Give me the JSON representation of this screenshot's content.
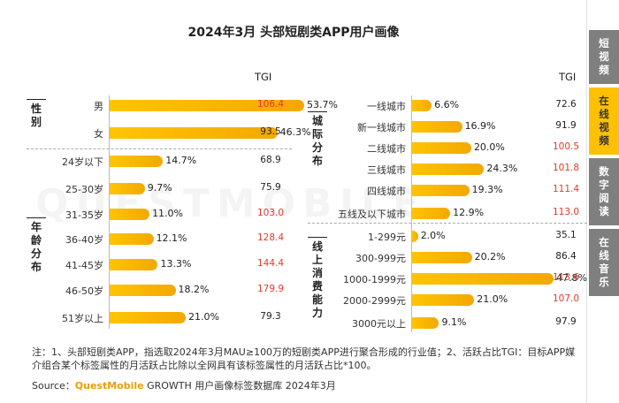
{
  "title": "2024年3月 头部短剧类APP用户画像",
  "watermark": "QUESTMOBILE",
  "tgi_header": "TGI",
  "side_tabs": [
    {
      "label": "短视频",
      "active": false
    },
    {
      "label": "在线视频",
      "active": true
    },
    {
      "label": "数字阅读",
      "active": false
    },
    {
      "label": "在线音乐",
      "active": false
    }
  ],
  "note": "注：1、头部短剧类APP，指选取2024年3月MAU≥100万的短剧类APP进行聚合形成的行业值；2、活跃占比TGI：目标APP媒介组合某个标签属性的月活跃占比除以全网具有该标签属性的月活跃占比*100。",
  "source": {
    "prefix": "Source：",
    "brand": "QuestMobile",
    "suffix": " GROWTH 用户画像标签数据库 2024年3月"
  },
  "colors": {
    "bar": "#ffc000",
    "tgi_high": "#e03a2c",
    "tgi_normal": "#222222"
  },
  "chart_data": [
    {
      "type": "bar",
      "groups": [
        {
          "name": "性别",
          "categories": [
            "男",
            "女"
          ],
          "values": [
            53.7,
            46.3
          ],
          "value_labels": [
            "53.7%",
            "46.3%"
          ],
          "tgi": [
            "106.4",
            "93.5"
          ],
          "tgi_high": [
            true,
            false
          ]
        },
        {
          "name": "年龄分布",
          "categories": [
            "24岁以下",
            "25-30岁",
            "31-35岁",
            "36-40岁",
            "41-45岁",
            "46-50岁",
            "51岁以上"
          ],
          "values": [
            14.7,
            9.7,
            11.0,
            12.1,
            13.3,
            18.2,
            21.0
          ],
          "value_labels": [
            "14.7%",
            "9.7%",
            "11.0%",
            "12.1%",
            "13.3%",
            "18.2%",
            "21.0%"
          ],
          "tgi": [
            "68.9",
            "75.9",
            "103.0",
            "128.4",
            "144.4",
            "179.9",
            "79.3"
          ],
          "tgi_high": [
            false,
            false,
            true,
            true,
            true,
            true,
            false
          ]
        }
      ]
    },
    {
      "type": "bar",
      "groups": [
        {
          "name": "城际分布",
          "categories": [
            "一线城市",
            "新一线城市",
            "二线城市",
            "三线城市",
            "四线城市",
            "五线及以下城市"
          ],
          "values": [
            6.6,
            16.9,
            20.0,
            24.3,
            19.3,
            12.9
          ],
          "value_labels": [
            "6.6%",
            "16.9%",
            "20.0%",
            "24.3%",
            "19.3%",
            "12.9%"
          ],
          "tgi": [
            "72.6",
            "91.9",
            "100.5",
            "101.8",
            "111.4",
            "113.0"
          ],
          "tgi_high": [
            false,
            false,
            true,
            true,
            true,
            true
          ]
        },
        {
          "name": "线上消费能力",
          "categories": [
            "1-299元",
            "300-999元",
            "1000-1999元",
            "2000-2999元",
            "3000元以上"
          ],
          "values": [
            2.0,
            20.2,
            47.8,
            21.0,
            9.1
          ],
          "value_labels": [
            "2.0%",
            "20.2%",
            "47.8%",
            "21.0%",
            "9.1%"
          ],
          "tgi": [
            "35.1",
            "86.4",
            "113.6",
            "107.0",
            "97.9"
          ],
          "tgi_high": [
            false,
            false,
            true,
            true,
            false
          ]
        }
      ]
    }
  ]
}
